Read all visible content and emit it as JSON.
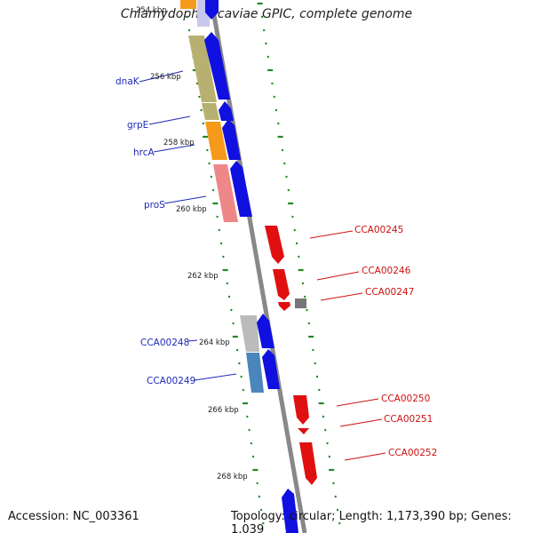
{
  "title": "Chlamydophila caviae GPIC, complete genome",
  "footer": {
    "accession": "Accession: NC_003361",
    "summary": "Topology: circular; Length: 1,173,390 bp; Genes: 1,039"
  },
  "scale_labels": [
    "254 kbp",
    "256 kbp",
    "258 kbp",
    "260 kbp",
    "262 kbp",
    "264 kbp",
    "266 kbp",
    "268 kbp"
  ],
  "genes_left": [
    {
      "name": "dnaK"
    },
    {
      "name": "grpE"
    },
    {
      "name": "hrcA"
    },
    {
      "name": "proS"
    },
    {
      "name": "CCA00248"
    },
    {
      "name": "CCA00249"
    }
  ],
  "genes_right": [
    {
      "name": "CCA00245"
    },
    {
      "name": "CCA00246"
    },
    {
      "name": "CCA00247"
    },
    {
      "name": "CCA00250"
    },
    {
      "name": "CCA00251"
    },
    {
      "name": "CCA00252"
    }
  ],
  "colors": {
    "forward": "#1010e0",
    "reverse": "#e01010",
    "backbone": "#888888",
    "tick": "#228822",
    "label_blue": "#1d2ab8",
    "label_red": "#cc1111",
    "cog_orange": "#f59a1a",
    "cog_olive": "#b8b070",
    "cog_pink": "#ee8888",
    "cog_steel": "#4a86bb",
    "cog_gray": "#bbbbbb"
  }
}
